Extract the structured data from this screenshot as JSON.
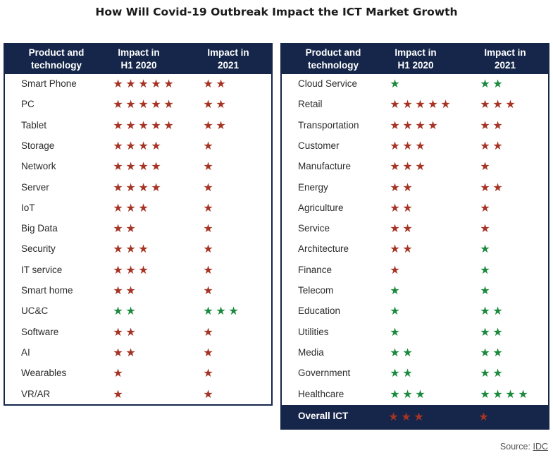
{
  "title": "How Will Covid-19 Outbreak Impact the ICT Market Growth",
  "colors": {
    "navy": "#15264a",
    "negative_star": "#a63425",
    "positive_star": "#1b8a3e"
  },
  "headers": [
    "Product and\ntechnology",
    "Impact in\nH1 2020",
    "Impact in\n2021"
  ],
  "source_prefix": "Source: ",
  "source_link": "IDC",
  "chart_data": [
    {
      "type": "table",
      "columns": [
        "Product and technology",
        "Impact in H1 2020",
        "Impact in 2021"
      ],
      "rows": [
        {
          "name": "Smart Phone",
          "h1_2020": {
            "stars": 5,
            "color": "red"
          },
          "y2021": {
            "stars": 2,
            "color": "red"
          }
        },
        {
          "name": "PC",
          "h1_2020": {
            "stars": 5,
            "color": "red"
          },
          "y2021": {
            "stars": 2,
            "color": "red"
          }
        },
        {
          "name": "Tablet",
          "h1_2020": {
            "stars": 5,
            "color": "red"
          },
          "y2021": {
            "stars": 2,
            "color": "red"
          }
        },
        {
          "name": "Storage",
          "h1_2020": {
            "stars": 4,
            "color": "red"
          },
          "y2021": {
            "stars": 1,
            "color": "red"
          }
        },
        {
          "name": "Network",
          "h1_2020": {
            "stars": 4,
            "color": "red"
          },
          "y2021": {
            "stars": 1,
            "color": "red"
          }
        },
        {
          "name": "Server",
          "h1_2020": {
            "stars": 4,
            "color": "red"
          },
          "y2021": {
            "stars": 1,
            "color": "red"
          }
        },
        {
          "name": "IoT",
          "h1_2020": {
            "stars": 3,
            "color": "red"
          },
          "y2021": {
            "stars": 1,
            "color": "red"
          }
        },
        {
          "name": "Big Data",
          "h1_2020": {
            "stars": 2,
            "color": "red"
          },
          "y2021": {
            "stars": 1,
            "color": "red"
          }
        },
        {
          "name": "Security",
          "h1_2020": {
            "stars": 3,
            "color": "red"
          },
          "y2021": {
            "stars": 1,
            "color": "red"
          }
        },
        {
          "name": "IT service",
          "h1_2020": {
            "stars": 3,
            "color": "red"
          },
          "y2021": {
            "stars": 1,
            "color": "red"
          }
        },
        {
          "name": "Smart home",
          "h1_2020": {
            "stars": 2,
            "color": "red"
          },
          "y2021": {
            "stars": 1,
            "color": "red"
          }
        },
        {
          "name": "UC&C",
          "h1_2020": {
            "stars": 2,
            "color": "green"
          },
          "y2021": {
            "stars": 3,
            "color": "green"
          }
        },
        {
          "name": "Software",
          "h1_2020": {
            "stars": 2,
            "color": "red"
          },
          "y2021": {
            "stars": 1,
            "color": "red"
          }
        },
        {
          "name": "AI",
          "h1_2020": {
            "stars": 2,
            "color": "red"
          },
          "y2021": {
            "stars": 1,
            "color": "red"
          }
        },
        {
          "name": "Wearables",
          "h1_2020": {
            "stars": 1,
            "color": "red"
          },
          "y2021": {
            "stars": 1,
            "color": "red"
          }
        },
        {
          "name": "VR/AR",
          "h1_2020": {
            "stars": 1,
            "color": "red"
          },
          "y2021": {
            "stars": 1,
            "color": "red"
          }
        }
      ]
    },
    {
      "type": "table",
      "columns": [
        "Product and technology",
        "Impact in H1 2020",
        "Impact in 2021"
      ],
      "rows": [
        {
          "name": "Cloud Service",
          "h1_2020": {
            "stars": 1,
            "color": "green"
          },
          "y2021": {
            "stars": 2,
            "color": "green"
          }
        },
        {
          "name": "Retail",
          "h1_2020": {
            "stars": 5,
            "color": "red"
          },
          "y2021": {
            "stars": 3,
            "color": "red"
          }
        },
        {
          "name": "Transportation",
          "h1_2020": {
            "stars": 4,
            "color": "red"
          },
          "y2021": {
            "stars": 2,
            "color": "red"
          }
        },
        {
          "name": "Customer",
          "h1_2020": {
            "stars": 3,
            "color": "red"
          },
          "y2021": {
            "stars": 2,
            "color": "red"
          }
        },
        {
          "name": "Manufacture",
          "h1_2020": {
            "stars": 3,
            "color": "red"
          },
          "y2021": {
            "stars": 1,
            "color": "red"
          }
        },
        {
          "name": "Energy",
          "h1_2020": {
            "stars": 2,
            "color": "red"
          },
          "y2021": {
            "stars": 2,
            "color": "red"
          }
        },
        {
          "name": "Agriculture",
          "h1_2020": {
            "stars": 2,
            "color": "red"
          },
          "y2021": {
            "stars": 1,
            "color": "red"
          }
        },
        {
          "name": "Service",
          "h1_2020": {
            "stars": 2,
            "color": "red"
          },
          "y2021": {
            "stars": 1,
            "color": "red"
          }
        },
        {
          "name": "Architecture",
          "h1_2020": {
            "stars": 2,
            "color": "red"
          },
          "y2021": {
            "stars": 1,
            "color": "green"
          }
        },
        {
          "name": "Finance",
          "h1_2020": {
            "stars": 1,
            "color": "red"
          },
          "y2021": {
            "stars": 1,
            "color": "green"
          }
        },
        {
          "name": "Telecom",
          "h1_2020": {
            "stars": 1,
            "color": "green"
          },
          "y2021": {
            "stars": 1,
            "color": "green"
          }
        },
        {
          "name": "Education",
          "h1_2020": {
            "stars": 1,
            "color": "green"
          },
          "y2021": {
            "stars": 2,
            "color": "green"
          }
        },
        {
          "name": "Utilities",
          "h1_2020": {
            "stars": 1,
            "color": "green"
          },
          "y2021": {
            "stars": 2,
            "color": "green"
          }
        },
        {
          "name": "Media",
          "h1_2020": {
            "stars": 2,
            "color": "green"
          },
          "y2021": {
            "stars": 2,
            "color": "green"
          }
        },
        {
          "name": "Government",
          "h1_2020": {
            "stars": 2,
            "color": "green"
          },
          "y2021": {
            "stars": 2,
            "color": "green"
          }
        },
        {
          "name": "Healthcare",
          "h1_2020": {
            "stars": 3,
            "color": "green"
          },
          "y2021": {
            "stars": 4,
            "color": "green"
          }
        }
      ],
      "overall": {
        "name": "Overall ICT",
        "h1_2020": {
          "stars": 3,
          "color": "red"
        },
        "y2021": {
          "stars": 1,
          "color": "red"
        }
      }
    }
  ]
}
